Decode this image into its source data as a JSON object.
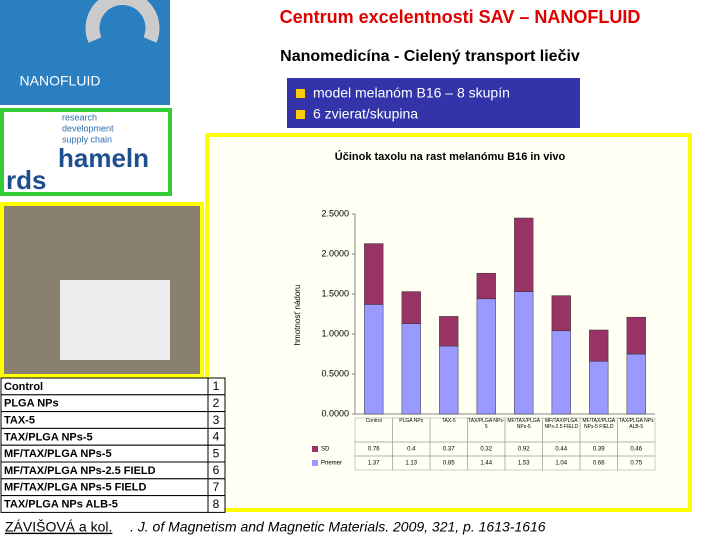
{
  "header": {
    "title": "Centrum excelentnosti SAV – NANOFLUID",
    "subtitle": "Nanomedicína - Cielený transport liečiv",
    "logo": "NANOFLUID",
    "partner_lines": [
      "research",
      "development",
      "supply chain"
    ],
    "partner_name": [
      "hameln",
      "rds"
    ]
  },
  "bullets": [
    "model melanóm B16 – 8 skupín",
    "6 zvierat/skupina"
  ],
  "groups": [
    {
      "label": "Control",
      "number": 1
    },
    {
      "label": "PLGA NPs",
      "number": 2
    },
    {
      "label": "TAX-5",
      "number": 3
    },
    {
      "label": "TAX/PLGA NPs-5",
      "number": 4
    },
    {
      "label": "MF/TAX/PLGA NPs-5",
      "number": 5
    },
    {
      "label": "MF/TAX/PLGA NPs-2.5 FIELD",
      "number": 6
    },
    {
      "label": "MF/TAX/PLGA NPs-5 FIELD",
      "number": 7
    },
    {
      "label": "TAX/PLGA NPs ALB-5",
      "number": 8
    }
  ],
  "chart_data": {
    "type": "bar",
    "stacked": true,
    "title": "Účinok taxolu na rast melanómu B16 in vivo",
    "y_label": "hmotnosť nádoru",
    "categories": [
      "Control",
      "PLGA NPs",
      "TAX-5",
      "TAX/PLGA NPs-5",
      "MF/TAX/PLGA NPs-5",
      "MF/TAX/PLGA NPs-2.5 FIELD",
      "MF/TAX/PLGA NPs-5 FIELD",
      "TAX/PLGA NPs ALB-5"
    ],
    "series": [
      {
        "name": "Priemer",
        "color": "#9999ff",
        "values": [
          1.37,
          1.13,
          0.85,
          1.44,
          1.53,
          1.04,
          0.66,
          0.75
        ]
      },
      {
        "name": "SD",
        "color": "#993366",
        "values": [
          0.76,
          0.4,
          0.37,
          0.32,
          0.92,
          0.44,
          0.39,
          0.46
        ]
      }
    ],
    "ylim": [
      0,
      2.5
    ],
    "yticks": [
      {
        "value": 0,
        "label": "0.0000"
      },
      {
        "value": 0.5,
        "label": "0.5000"
      },
      {
        "value": 1,
        "label": "1.0000"
      },
      {
        "value": 1.5,
        "label": "1.5000"
      },
      {
        "value": 2,
        "label": "2.0000"
      },
      {
        "value": 2.5,
        "label": "2.5000"
      }
    ],
    "grid": false
  },
  "citation": {
    "authors": "ZÁVIŠOVÁ a kol.",
    "source": ". J. of Magnetism and Magnetic Materials. 2009, 321, p. 1613-1616"
  }
}
